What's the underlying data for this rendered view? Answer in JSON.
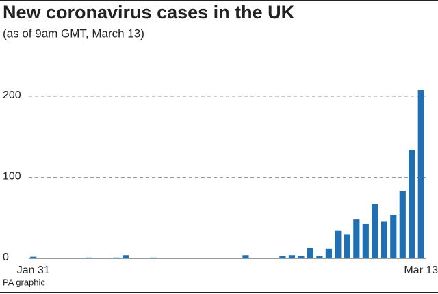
{
  "chart_data": {
    "type": "bar",
    "title": "New coronavirus cases in the UK",
    "subtitle": "(as of 9am GMT, March 13)",
    "source": "PA graphic",
    "categories": [
      "Jan 31",
      null,
      null,
      null,
      null,
      null,
      null,
      null,
      null,
      null,
      null,
      null,
      null,
      null,
      null,
      null,
      null,
      null,
      null,
      null,
      null,
      null,
      null,
      null,
      null,
      null,
      null,
      null,
      null,
      null,
      null,
      null,
      null,
      null,
      null,
      null,
      null,
      null,
      null,
      null,
      null,
      null,
      "Mar 13"
    ],
    "values": [
      2,
      0,
      0,
      0,
      0,
      0,
      1,
      0,
      0,
      1,
      4,
      0,
      0,
      1,
      0,
      0,
      0,
      0,
      0,
      0,
      0,
      0,
      0,
      4,
      0,
      0,
      0,
      3,
      4,
      3,
      13,
      3,
      12,
      34,
      30,
      48,
      43,
      67,
      46,
      54,
      83,
      134,
      208
    ],
    "color": "#1f6fb2",
    "ylim": [
      0,
      220
    ],
    "yticks": [
      0,
      100,
      200
    ],
    "grid": true
  }
}
